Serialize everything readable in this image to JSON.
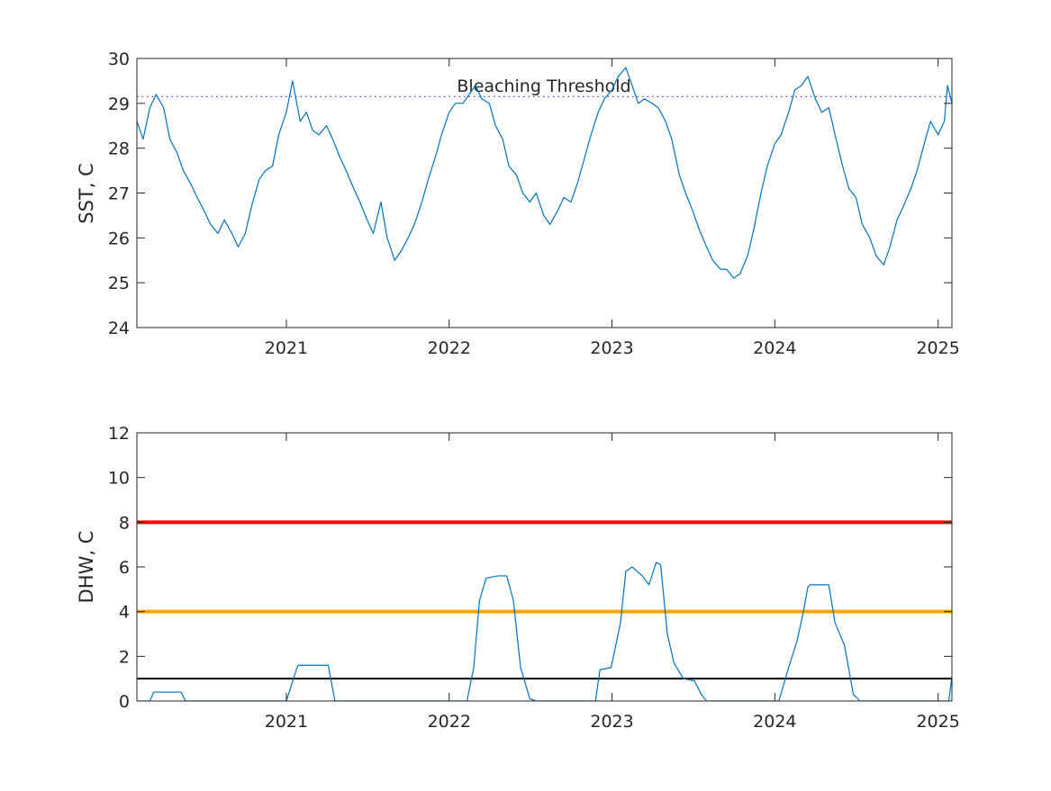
{
  "colors": {
    "sst_line": "#0072BD",
    "threshold_line": "#4B4BC8",
    "axis": "#262626",
    "alert_red": "#FF0000",
    "alert_orange": "#FFA500",
    "alert_black": "#000000"
  },
  "chart_data": [
    {
      "type": "line",
      "title": "",
      "xlabel": "",
      "ylabel": "SST, C",
      "xlim": [
        "2020-02-01",
        "2025-02-01"
      ],
      "ylim": [
        24,
        30
      ],
      "grid": false,
      "xticks": [
        "2021-01-01",
        "2022-01-01",
        "2023-01-01",
        "2024-01-01",
        "2025-01-01"
      ],
      "xtick_labels": [
        "2021",
        "2022",
        "2023",
        "2024",
        "2025"
      ],
      "yticks": [
        24,
        25,
        26,
        27,
        28,
        29,
        30
      ],
      "ytick_labels": [
        "24",
        "25",
        "26",
        "27",
        "28",
        "29",
        "30"
      ],
      "series": [
        {
          "values": [
            [
              "2020-02-01",
              28.6
            ],
            [
              "2020-02-15",
              28.2
            ],
            [
              "2020-03-01",
              28.9
            ],
            [
              "2020-03-15",
              29.2
            ],
            [
              "2020-04-01",
              28.9
            ],
            [
              "2020-04-15",
              28.2
            ],
            [
              "2020-05-01",
              27.9
            ],
            [
              "2020-05-15",
              27.5
            ],
            [
              "2020-06-01",
              27.2
            ],
            [
              "2020-06-15",
              26.9
            ],
            [
              "2020-07-01",
              26.6
            ],
            [
              "2020-07-15",
              26.3
            ],
            [
              "2020-08-01",
              26.1
            ],
            [
              "2020-08-15",
              26.4
            ],
            [
              "2020-09-01",
              26.1
            ],
            [
              "2020-09-15",
              25.8
            ],
            [
              "2020-10-01",
              26.1
            ],
            [
              "2020-10-15",
              26.7
            ],
            [
              "2020-11-01",
              27.3
            ],
            [
              "2020-11-15",
              27.5
            ],
            [
              "2020-12-01",
              27.6
            ],
            [
              "2020-12-15",
              28.3
            ],
            [
              "2021-01-01",
              28.8
            ],
            [
              "2021-01-15",
              29.5
            ],
            [
              "2021-02-01",
              28.6
            ],
            [
              "2021-02-15",
              28.8
            ],
            [
              "2021-03-01",
              28.4
            ],
            [
              "2021-03-15",
              28.3
            ],
            [
              "2021-04-01",
              28.5
            ],
            [
              "2021-04-15",
              28.2
            ],
            [
              "2021-05-01",
              27.8
            ],
            [
              "2021-05-15",
              27.5
            ],
            [
              "2021-06-01",
              27.1
            ],
            [
              "2021-06-15",
              26.8
            ],
            [
              "2021-07-01",
              26.4
            ],
            [
              "2021-07-15",
              26.1
            ],
            [
              "2021-08-01",
              26.8
            ],
            [
              "2021-08-15",
              26.0
            ],
            [
              "2021-09-01",
              25.5
            ],
            [
              "2021-09-15",
              25.7
            ],
            [
              "2021-10-01",
              26.0
            ],
            [
              "2021-10-15",
              26.3
            ],
            [
              "2021-11-01",
              26.8
            ],
            [
              "2021-11-15",
              27.3
            ],
            [
              "2021-12-01",
              27.8
            ],
            [
              "2021-12-15",
              28.3
            ],
            [
              "2022-01-01",
              28.8
            ],
            [
              "2022-01-15",
              29.0
            ],
            [
              "2022-02-01",
              29.0
            ],
            [
              "2022-02-15",
              29.2
            ],
            [
              "2022-03-01",
              29.4
            ],
            [
              "2022-03-15",
              29.1
            ],
            [
              "2022-04-01",
              29.0
            ],
            [
              "2022-04-15",
              28.5
            ],
            [
              "2022-05-01",
              28.2
            ],
            [
              "2022-05-15",
              27.6
            ],
            [
              "2022-06-01",
              27.4
            ],
            [
              "2022-06-15",
              27.0
            ],
            [
              "2022-07-01",
              26.8
            ],
            [
              "2022-07-15",
              27.0
            ],
            [
              "2022-08-01",
              26.5
            ],
            [
              "2022-08-15",
              26.3
            ],
            [
              "2022-09-01",
              26.6
            ],
            [
              "2022-09-15",
              26.9
            ],
            [
              "2022-10-01",
              26.8
            ],
            [
              "2022-10-15",
              27.2
            ],
            [
              "2022-11-01",
              27.8
            ],
            [
              "2022-11-15",
              28.3
            ],
            [
              "2022-12-01",
              28.8
            ],
            [
              "2022-12-15",
              29.1
            ],
            [
              "2023-01-01",
              29.3
            ],
            [
              "2023-01-15",
              29.6
            ],
            [
              "2023-02-01",
              29.8
            ],
            [
              "2023-02-15",
              29.4
            ],
            [
              "2023-03-01",
              29.0
            ],
            [
              "2023-03-15",
              29.1
            ],
            [
              "2023-04-01",
              29.0
            ],
            [
              "2023-04-15",
              28.9
            ],
            [
              "2023-05-01",
              28.6
            ],
            [
              "2023-05-15",
              28.2
            ],
            [
              "2023-06-01",
              27.4
            ],
            [
              "2023-06-15",
              27.0
            ],
            [
              "2023-07-01",
              26.6
            ],
            [
              "2023-07-15",
              26.2
            ],
            [
              "2023-08-01",
              25.8
            ],
            [
              "2023-08-15",
              25.5
            ],
            [
              "2023-09-01",
              25.3
            ],
            [
              "2023-09-15",
              25.3
            ],
            [
              "2023-10-01",
              25.1
            ],
            [
              "2023-10-15",
              25.2
            ],
            [
              "2023-11-01",
              25.6
            ],
            [
              "2023-11-15",
              26.2
            ],
            [
              "2023-12-01",
              27.0
            ],
            [
              "2023-12-15",
              27.6
            ],
            [
              "2024-01-01",
              28.1
            ],
            [
              "2024-01-15",
              28.3
            ],
            [
              "2024-02-01",
              28.8
            ],
            [
              "2024-02-15",
              29.3
            ],
            [
              "2024-03-01",
              29.4
            ],
            [
              "2024-03-15",
              29.6
            ],
            [
              "2024-04-01",
              29.1
            ],
            [
              "2024-04-15",
              28.8
            ],
            [
              "2024-05-01",
              28.9
            ],
            [
              "2024-05-15",
              28.3
            ],
            [
              "2024-06-01",
              27.6
            ],
            [
              "2024-06-15",
              27.1
            ],
            [
              "2024-07-01",
              26.9
            ],
            [
              "2024-07-15",
              26.3
            ],
            [
              "2024-08-01",
              26.0
            ],
            [
              "2024-08-15",
              25.6
            ],
            [
              "2024-09-01",
              25.4
            ],
            [
              "2024-09-15",
              25.8
            ],
            [
              "2024-10-01",
              26.4
            ],
            [
              "2024-10-15",
              26.7
            ],
            [
              "2024-11-01",
              27.1
            ],
            [
              "2024-11-15",
              27.5
            ],
            [
              "2024-12-01",
              28.1
            ],
            [
              "2024-12-15",
              28.6
            ],
            [
              "2025-01-01",
              28.3
            ],
            [
              "2025-01-15",
              28.6
            ],
            [
              "2025-01-22",
              29.4
            ],
            [
              "2025-02-01",
              29.0
            ]
          ]
        }
      ],
      "reference_lines": [
        {
          "y": 29.15,
          "style": "dotted",
          "label": "Bleaching Threshold"
        }
      ]
    },
    {
      "type": "line",
      "title": "",
      "xlabel": "",
      "ylabel": "DHW, C",
      "xlim": [
        "2020-02-01",
        "2025-02-01"
      ],
      "ylim": [
        0,
        12
      ],
      "grid": false,
      "xticks": [
        "2021-01-01",
        "2022-01-01",
        "2023-01-01",
        "2024-01-01",
        "2025-01-01"
      ],
      "xtick_labels": [
        "2021",
        "2022",
        "2023",
        "2024",
        "2025"
      ],
      "yticks": [
        0,
        2,
        4,
        6,
        8,
        10,
        12
      ],
      "ytick_labels": [
        "0",
        "2",
        "4",
        "6",
        "8",
        "10",
        "12"
      ],
      "series": [
        {
          "values": [
            [
              "2020-02-01",
              0
            ],
            [
              "2020-03-01",
              0
            ],
            [
              "2020-03-10",
              0.4
            ],
            [
              "2020-05-10",
              0.4
            ],
            [
              "2020-05-20",
              0
            ],
            [
              "2021-01-01",
              0
            ],
            [
              "2021-01-25",
              1.5
            ],
            [
              "2021-01-28",
              1.6
            ],
            [
              "2021-04-05",
              1.6
            ],
            [
              "2021-04-20",
              0
            ],
            [
              "2022-02-10",
              0
            ],
            [
              "2022-02-25",
              1.5
            ],
            [
              "2022-03-10",
              4.5
            ],
            [
              "2022-03-25",
              5.5
            ],
            [
              "2022-04-20",
              5.6
            ],
            [
              "2022-05-10",
              5.6
            ],
            [
              "2022-05-25",
              4.5
            ],
            [
              "2022-06-10",
              1.5
            ],
            [
              "2022-07-01",
              0.1
            ],
            [
              "2022-07-15",
              0
            ],
            [
              "2022-11-25",
              0
            ],
            [
              "2022-12-05",
              1.4
            ],
            [
              "2022-12-30",
              1.5
            ],
            [
              "2023-01-20",
              3.5
            ],
            [
              "2023-02-01",
              5.8
            ],
            [
              "2023-02-15",
              6.0
            ],
            [
              "2023-03-10",
              5.6
            ],
            [
              "2023-03-25",
              5.2
            ],
            [
              "2023-04-10",
              6.2
            ],
            [
              "2023-04-20",
              6.1
            ],
            [
              "2023-05-05",
              3.0
            ],
            [
              "2023-05-20",
              1.7
            ],
            [
              "2023-06-10",
              1.0
            ],
            [
              "2023-07-05",
              0.9
            ],
            [
              "2023-07-20",
              0.3
            ],
            [
              "2023-08-01",
              0
            ],
            [
              "2024-01-10",
              0
            ],
            [
              "2024-02-01",
              1.5
            ],
            [
              "2024-02-20",
              2.7
            ],
            [
              "2024-03-05",
              4.0
            ],
            [
              "2024-03-15",
              5.1
            ],
            [
              "2024-03-20",
              5.2
            ],
            [
              "2024-05-01",
              5.2
            ],
            [
              "2024-05-15",
              3.5
            ],
            [
              "2024-06-05",
              2.5
            ],
            [
              "2024-06-25",
              0.3
            ],
            [
              "2024-07-10",
              0
            ],
            [
              "2025-01-25",
              0
            ],
            [
              "2025-02-01",
              1.1
            ]
          ]
        }
      ],
      "reference_lines": [
        {
          "y": 8,
          "color": "red",
          "width": "thick"
        },
        {
          "y": 4,
          "color": "orange",
          "width": "thick"
        },
        {
          "y": 1,
          "color": "black",
          "width": "thin"
        }
      ]
    }
  ]
}
